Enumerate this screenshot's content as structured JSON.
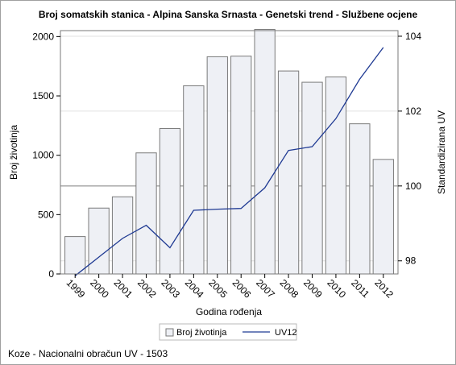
{
  "chart_data": {
    "type": "bar",
    "title": "Broj somatskih stanica - Alpina Sanska Srnasta - Genetski trend - Službene ocjene",
    "xlabel": "Godina rođenja",
    "ylabel": "Broj životinja",
    "y2label": "Standardizirana UV",
    "categories": [
      "1999",
      "2000",
      "2001",
      "2002",
      "2003",
      "2004",
      "2005",
      "2006",
      "2007",
      "2008",
      "2009",
      "2010",
      "2011",
      "2012"
    ],
    "ylim": [
      0,
      2050
    ],
    "yticks": [
      0,
      500,
      1000,
      1500,
      2000
    ],
    "y2lim": [
      97.65,
      104.15
    ],
    "y2ticks": [
      98,
      100,
      102,
      104
    ],
    "y2_reference_line": 100,
    "series": [
      {
        "name": "Broj životinja",
        "kind": "bar",
        "axis": "left",
        "values": [
          315,
          555,
          650,
          1020,
          1225,
          1585,
          1830,
          1835,
          2060,
          1710,
          1615,
          1660,
          1265,
          965
        ]
      },
      {
        "name": "UV12",
        "kind": "line",
        "axis": "right",
        "values": [
          97.6,
          98.1,
          98.6,
          98.95,
          98.35,
          99.35,
          99.38,
          99.4,
          99.95,
          100.95,
          101.05,
          101.8,
          102.85,
          103.7
        ]
      }
    ],
    "grid": "horizontal",
    "legend_position": "bottom-center",
    "colors": {
      "bar_fill": "#eef0f5",
      "bar_stroke": "#7a7a7a",
      "line": "#1f3a93",
      "grid": "#e0e0e0",
      "reference": "#909090"
    }
  },
  "footnote": "Koze - Nacionalni obračun UV - 1503"
}
